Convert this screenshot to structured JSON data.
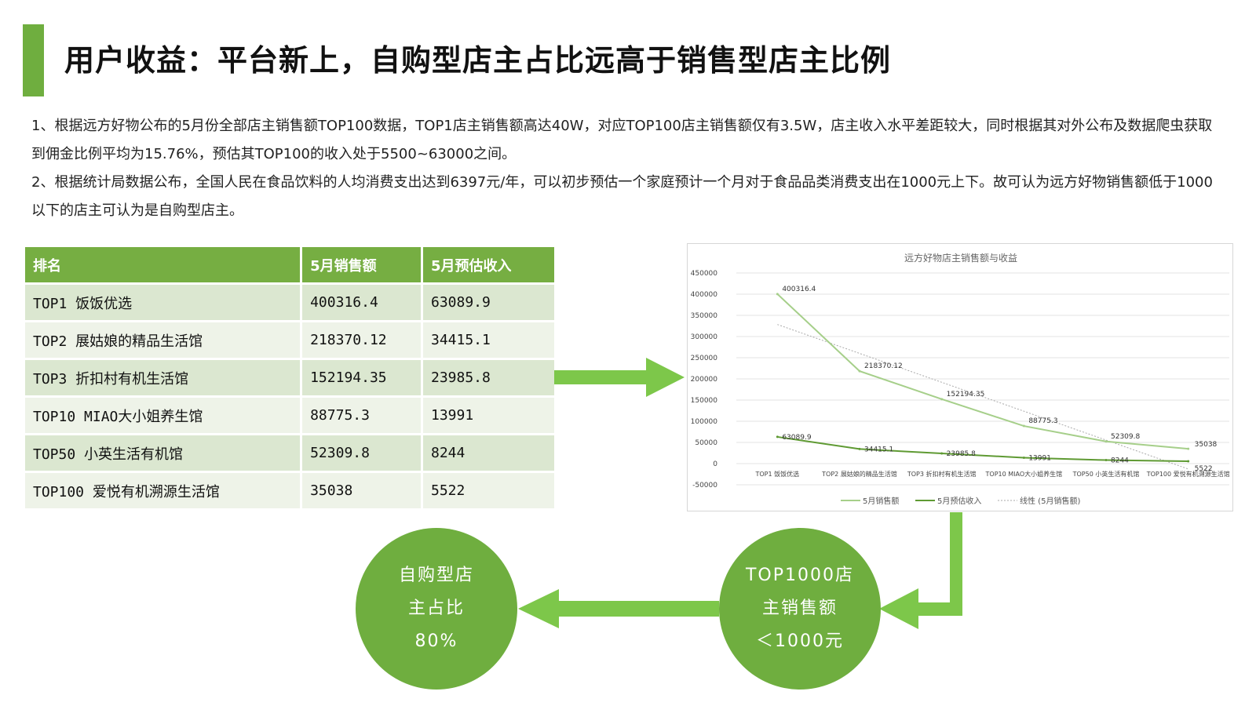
{
  "title": "用户收益：平台新上，自购型店主占比远高于销售型店主比例",
  "paragraphs": [
    "1、根据远方好物公布的5月份全部店主销售额TOP100数据，TOP1店主销售额高达40W，对应TOP100店主销售额仅有3.5W，店主收入水平差距较大，同时根据其对外公布及数据爬虫获取到佣金比例平均为15.76%，预估其TOP100的收入处于5500~63000之间。",
    "2、根据统计局数据公布，全国人民在食品饮料的人均消费支出达到6397元/年，可以初步预估一个家庭预计一个月对于食品品类消费支出在1000元上下。故可认为远方好物销售额低于1000以下的店主可认为是自购型店主。"
  ],
  "table": {
    "headers": [
      "排名",
      "5月销售额",
      "5月预估收入"
    ],
    "rows": [
      [
        "TOP1 饭饭优选",
        "400316.4",
        "63089.9"
      ],
      [
        "TOP2 展姑娘的精品生活馆",
        "218370.12",
        "34415.1"
      ],
      [
        "TOP3 折扣村有机生活馆",
        "152194.35",
        "23985.8"
      ],
      [
        "TOP10 MIAO大小姐养生馆",
        "88775.3",
        "13991"
      ],
      [
        "TOP50 小英生活有机馆",
        "52309.8",
        "8244"
      ],
      [
        "TOP100 爱悦有机溯源生活馆",
        "35038",
        "5522"
      ]
    ]
  },
  "chart_data": {
    "type": "line",
    "title": "远方好物店主销售额与收益",
    "categories": [
      "TOP1 饭饭优选",
      "TOP2 展姑娘的精品生活馆",
      "TOP3 折扣村有机生活馆",
      "TOP10 MIAO大小姐养生馆",
      "TOP50 小英生活有机馆",
      "TOP100 爱悦有机溯源生活馆"
    ],
    "category_labels": [
      "TOP1 饭饭优选",
      "TOP2 展姑娘的精品生活馆",
      "TOP3 折扣村有机生活馆",
      "TOP10 MIAO大小姐养生馆",
      "TOP50 小英生活有机馆",
      "TOP100 爱悦有机溯源生活馆"
    ],
    "series": [
      {
        "name": "5月销售额",
        "values": [
          400316.4,
          218370.12,
          152194.35,
          88775.3,
          52309.8,
          35038
        ],
        "labels": [
          "400316.4",
          "218370.12",
          "152194.35",
          "88775.3",
          "52309.8",
          "35038"
        ],
        "color": "#a6cf8a"
      },
      {
        "name": "5月预估收入",
        "values": [
          63089.9,
          34415.1,
          23985.8,
          13991,
          8244,
          5522
        ],
        "labels": [
          "63089.9",
          "34415.1",
          "23985.8",
          "13991",
          "8244",
          "5522"
        ],
        "color": "#5f9a33"
      }
    ],
    "trendline": {
      "name": "线性 (5月销售额)",
      "of_series": "5月销售额",
      "type": "linear"
    },
    "yticks": [
      "450000",
      "400000",
      "350000",
      "300000",
      "250000",
      "200000",
      "150000",
      "100000",
      "50000",
      "0",
      "-50000"
    ],
    "ylim": [
      -50000,
      450000
    ],
    "grid": true,
    "legend": "bottom"
  },
  "flow": {
    "left_circle": {
      "lines": [
        "自购型店",
        "主占比",
        "80%"
      ]
    },
    "right_circle": {
      "lines": [
        "TOP1000店",
        "主销售额",
        "＜1000元"
      ]
    }
  },
  "colors": {
    "accent": "#6fae3f",
    "arrow": "#7dc74a",
    "header": "#76ae42"
  }
}
